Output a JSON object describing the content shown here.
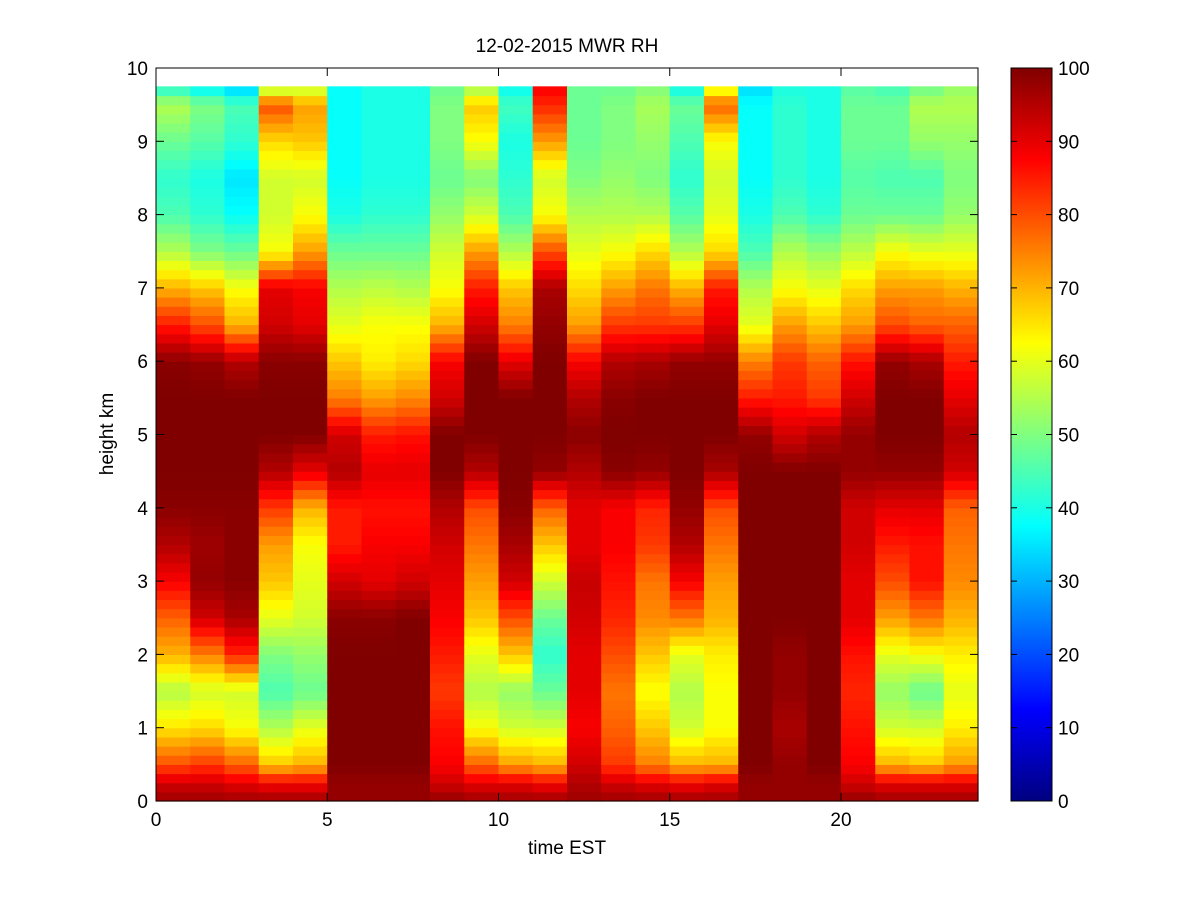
{
  "chart_data": {
    "type": "heatmap",
    "title": "12-02-2015 MWR RH",
    "xlabel": "time EST",
    "ylabel": "height km",
    "xlim": [
      0,
      24
    ],
    "ylim": [
      0,
      10
    ],
    "x_ticks": [
      0,
      5,
      10,
      15,
      20
    ],
    "x_tick_labels": [
      "0",
      "5",
      "10",
      "15",
      "20"
    ],
    "y_ticks": [
      0,
      1,
      2,
      3,
      4,
      5,
      6,
      7,
      8,
      9,
      10
    ],
    "y_tick_labels": [
      "0",
      "1",
      "2",
      "3",
      "4",
      "5",
      "6",
      "7",
      "8",
      "9",
      "10"
    ],
    "colorbar": {
      "colormap": "jet",
      "range": [
        0,
        100
      ],
      "ticks": [
        0,
        10,
        20,
        30,
        40,
        50,
        60,
        70,
        80,
        90,
        100
      ],
      "tick_labels": [
        "0",
        "10",
        "20",
        "30",
        "40",
        "50",
        "60",
        "70",
        "80",
        "90",
        "100"
      ]
    },
    "time_columns": [
      0,
      1,
      2,
      3,
      4,
      5,
      6,
      7,
      8,
      9,
      10,
      11,
      12,
      13,
      14,
      15,
      16,
      17,
      18,
      19,
      20,
      21,
      22,
      23
    ],
    "cell_width_hours": 1,
    "data_top_km": 9.75,
    "height_profile_points_km": [
      0,
      0.25,
      0.5,
      1,
      1.5,
      2,
      2.5,
      3,
      3.5,
      4,
      4.5,
      5,
      5.5,
      6,
      6.5,
      7,
      7.5,
      8,
      8.5,
      9,
      9.5,
      9.75
    ],
    "rh_profiles": [
      [
        97,
        92,
        80,
        65,
        55,
        70,
        78,
        88,
        95,
        99,
        100,
        100,
        100,
        99,
        85,
        70,
        55,
        45,
        42,
        48,
        55,
        40
      ],
      [
        97,
        92,
        82,
        66,
        58,
        75,
        92,
        98,
        97,
        99,
        100,
        100,
        100,
        98,
        80,
        68,
        50,
        42,
        40,
        46,
        50,
        36
      ],
      [
        97,
        90,
        78,
        62,
        58,
        84,
        96,
        99,
        99,
        99,
        100,
        100,
        100,
        95,
        70,
        62,
        48,
        38,
        35,
        42,
        45,
        32
      ],
      [
        97,
        88,
        68,
        55,
        45,
        50,
        60,
        68,
        72,
        82,
        95,
        100,
        100,
        99,
        92,
        90,
        62,
        58,
        58,
        66,
        80,
        52
      ],
      [
        97,
        88,
        70,
        60,
        48,
        52,
        58,
        60,
        62,
        70,
        90,
        100,
        100,
        99,
        90,
        88,
        72,
        62,
        58,
        68,
        72,
        55
      ],
      [
        98,
        98,
        100,
        100,
        100,
        100,
        99,
        92,
        85,
        85,
        95,
        92,
        75,
        68,
        60,
        55,
        48,
        40,
        38,
        38,
        38,
        38
      ],
      [
        98,
        98,
        100,
        100,
        100,
        100,
        99,
        90,
        88,
        86,
        90,
        85,
        72,
        64,
        62,
        56,
        48,
        42,
        40,
        40,
        40,
        40
      ],
      [
        98,
        98,
        100,
        100,
        100,
        100,
        100,
        92,
        88,
        86,
        90,
        86,
        74,
        66,
        62,
        55,
        48,
        42,
        40,
        40,
        40,
        40
      ],
      [
        98,
        92,
        88,
        86,
        82,
        85,
        88,
        90,
        92,
        95,
        100,
        100,
        92,
        88,
        70,
        62,
        58,
        52,
        48,
        50,
        50,
        48
      ],
      [
        97,
        90,
        78,
        62,
        55,
        60,
        68,
        72,
        76,
        80,
        95,
        100,
        100,
        100,
        92,
        85,
        72,
        58,
        50,
        62,
        68,
        52
      ],
      [
        97,
        90,
        72,
        58,
        52,
        68,
        80,
        92,
        96,
        99,
        100,
        100,
        100,
        90,
        75,
        68,
        55,
        45,
        42,
        40,
        44,
        38
      ],
      [
        97,
        88,
        70,
        58,
        48,
        42,
        48,
        58,
        68,
        78,
        98,
        100,
        100,
        100,
        98,
        96,
        80,
        62,
        58,
        72,
        84,
        88
      ],
      [
        97,
        95,
        92,
        88,
        90,
        90,
        92,
        93,
        90,
        90,
        95,
        99,
        95,
        88,
        72,
        66,
        60,
        55,
        50,
        48,
        48,
        48
      ],
      [
        97,
        92,
        82,
        78,
        76,
        80,
        84,
        86,
        88,
        88,
        99,
        100,
        99,
        95,
        82,
        72,
        62,
        55,
        52,
        50,
        50,
        48
      ],
      [
        97,
        90,
        75,
        68,
        62,
        68,
        74,
        76,
        82,
        84,
        98,
        100,
        100,
        96,
        82,
        76,
        66,
        55,
        50,
        52,
        54,
        50
      ],
      [
        97,
        88,
        70,
        58,
        55,
        60,
        76,
        88,
        95,
        98,
        100,
        100,
        100,
        98,
        82,
        70,
        55,
        46,
        42,
        45,
        48,
        38
      ],
      [
        97,
        90,
        70,
        62,
        62,
        64,
        70,
        72,
        76,
        80,
        96,
        100,
        100,
        98,
        90,
        85,
        66,
        60,
        58,
        62,
        78,
        58
      ],
      [
        98,
        98,
        100,
        100,
        100,
        100,
        100,
        100,
        100,
        100,
        100,
        98,
        85,
        75,
        60,
        55,
        45,
        40,
        38,
        38,
        38,
        34
      ],
      [
        98,
        98,
        98,
        96,
        98,
        98,
        100,
        100,
        100,
        100,
        100,
        92,
        85,
        82,
        72,
        62,
        55,
        45,
        42,
        42,
        42,
        40
      ],
      [
        98,
        98,
        100,
        100,
        100,
        100,
        100,
        100,
        100,
        100,
        100,
        95,
        82,
        78,
        68,
        60,
        52,
        42,
        40,
        40,
        40,
        40
      ],
      [
        98,
        92,
        88,
        86,
        84,
        86,
        90,
        90,
        92,
        92,
        98,
        98,
        92,
        86,
        72,
        66,
        56,
        48,
        46,
        48,
        48,
        46
      ],
      [
        97,
        90,
        70,
        58,
        52,
        60,
        72,
        80,
        85,
        90,
        98,
        100,
        100,
        98,
        80,
        72,
        62,
        48,
        45,
        48,
        48,
        44
      ],
      [
        97,
        90,
        68,
        58,
        48,
        62,
        76,
        86,
        86,
        90,
        98,
        100,
        100,
        96,
        78,
        72,
        60,
        48,
        45,
        52,
        55,
        48
      ],
      [
        97,
        90,
        72,
        64,
        60,
        64,
        70,
        74,
        76,
        78,
        92,
        95,
        90,
        85,
        78,
        70,
        60,
        52,
        50,
        52,
        55,
        52
      ]
    ]
  }
}
